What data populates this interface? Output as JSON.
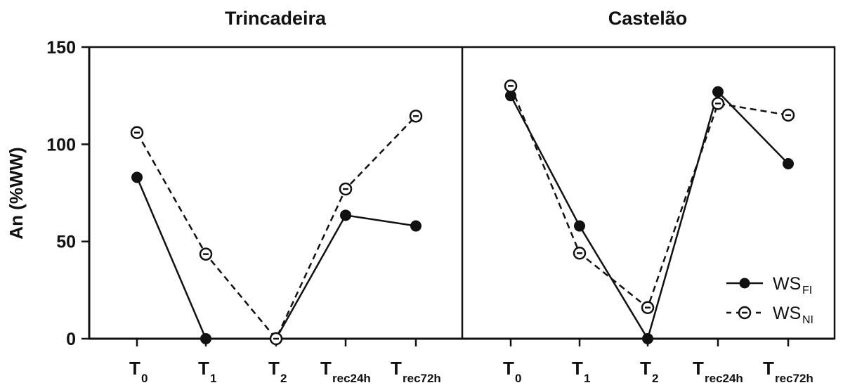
{
  "chart_data": {
    "type": "line",
    "ylabel": "An (%WW)",
    "ylim": [
      0,
      150
    ],
    "yticks": [
      0,
      50,
      100,
      150
    ],
    "categories": [
      {
        "main": "T",
        "sub": "0"
      },
      {
        "main": "T",
        "sub": "1"
      },
      {
        "main": "T",
        "sub": "2"
      },
      {
        "main": "T",
        "sub": "rec24h"
      },
      {
        "main": "T",
        "sub": "rec72h"
      }
    ],
    "legend": {
      "position": "bottom-right",
      "entries": [
        {
          "main": "WS",
          "sub": "FI",
          "style": "solid",
          "marker": "filled-circle"
        },
        {
          "main": "WS",
          "sub": "NI",
          "style": "dashed",
          "marker": "open-circle"
        }
      ]
    },
    "panels": [
      {
        "title": "Trincadeira",
        "series": [
          {
            "key": "WS_FI",
            "values": [
              83,
              0,
              0,
              63.5,
              58
            ]
          },
          {
            "key": "WS_NI",
            "values": [
              106,
              43.5,
              0,
              77,
              114.5
            ]
          }
        ]
      },
      {
        "title": "Castelão",
        "series": [
          {
            "key": "WS_FI",
            "values": [
              125,
              58,
              0,
              127,
              90
            ]
          },
          {
            "key": "WS_NI",
            "values": [
              130,
              44,
              16,
              121,
              115
            ]
          }
        ]
      }
    ]
  }
}
